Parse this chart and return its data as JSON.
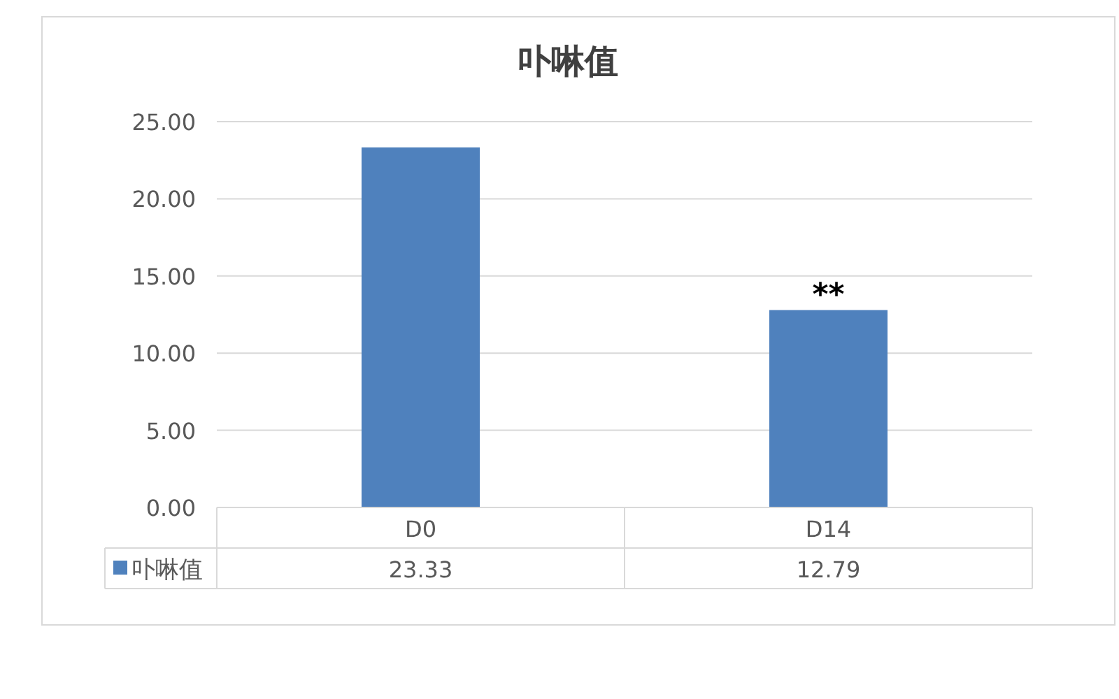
{
  "chart_data": {
    "type": "bar",
    "title": "卟啉值",
    "categories": [
      "D0",
      "D14"
    ],
    "series": [
      {
        "name": "卟啉值",
        "color": "#4f81bd",
        "values": [
          23.33,
          12.79
        ]
      }
    ],
    "ylim": [
      0,
      25
    ],
    "yticks": [
      {
        "value": 0,
        "label": "0.00"
      },
      {
        "value": 5,
        "label": "5.00"
      },
      {
        "value": 10,
        "label": "10.00"
      },
      {
        "value": 15,
        "label": "15.00"
      },
      {
        "value": 20,
        "label": "20.00"
      },
      {
        "value": 25,
        "label": "25.00"
      }
    ],
    "grid": "y",
    "legend": "bottom",
    "data_labels": true,
    "annotations": [
      {
        "text": "**",
        "x": "D14",
        "y": 12.79
      }
    ]
  }
}
